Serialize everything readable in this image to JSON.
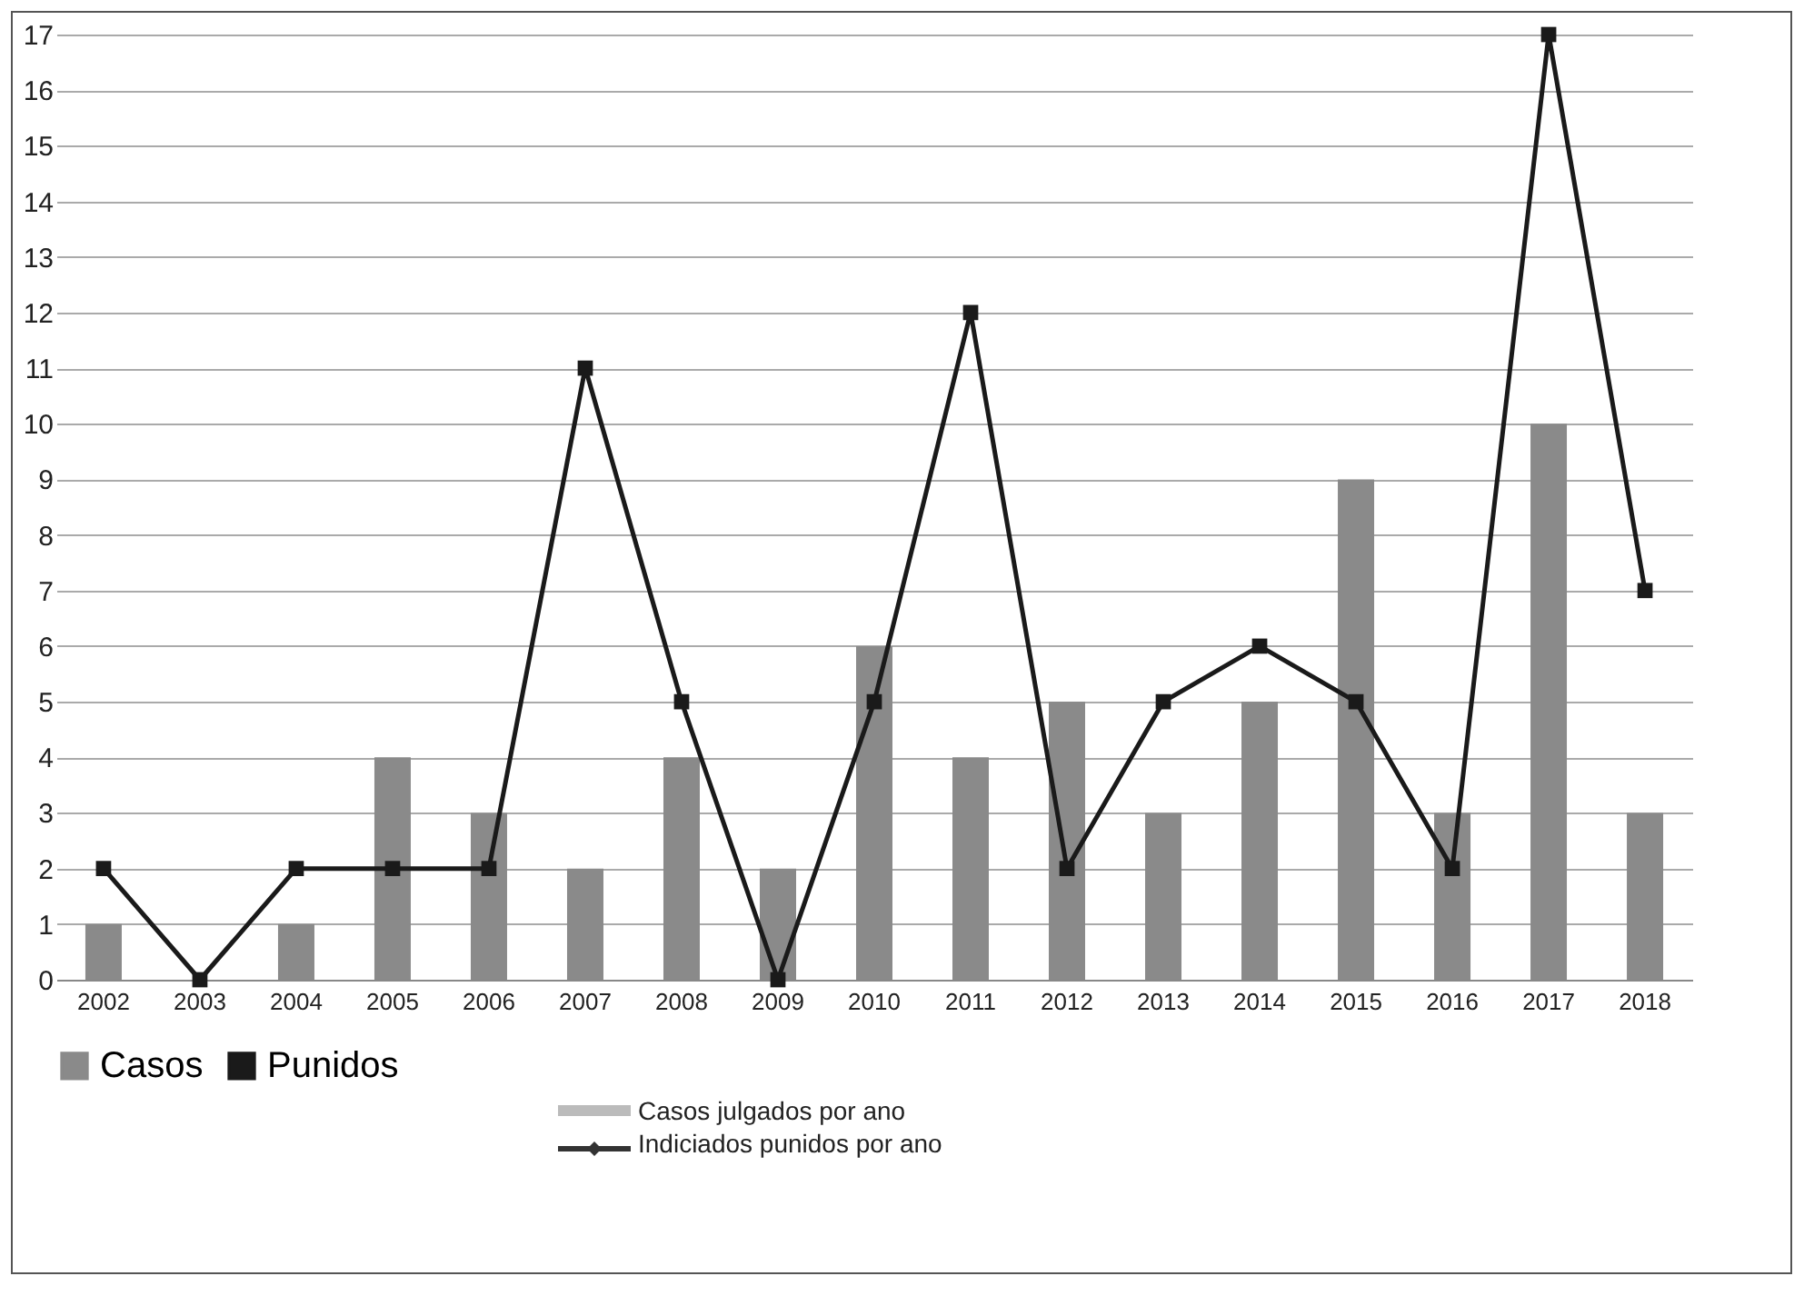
{
  "chart_data": {
    "type": "bar",
    "categories": [
      "2002",
      "2003",
      "2004",
      "2005",
      "2006",
      "2007",
      "2008",
      "2009",
      "2010",
      "2011",
      "2012",
      "2013",
      "2014",
      "2015",
      "2016",
      "2017",
      "2018"
    ],
    "series": [
      {
        "name": "Casos",
        "type": "bar",
        "color": "#8a8a8a",
        "values": [
          1,
          0,
          1,
          4,
          3,
          2,
          4,
          2,
          6,
          4,
          5,
          3,
          5,
          9,
          3,
          10,
          3
        ]
      },
      {
        "name": "Punidos",
        "type": "line",
        "color": "#1a1a1a",
        "marker": "square",
        "values": [
          2,
          0,
          2,
          2,
          2,
          11,
          5,
          0,
          5,
          12,
          2,
          5,
          6,
          5,
          2,
          17,
          7
        ]
      }
    ],
    "ylim": [
      0,
      17
    ],
    "yticks": [
      0,
      1,
      2,
      3,
      4,
      5,
      6,
      7,
      8,
      9,
      10,
      11,
      12,
      13,
      14,
      15,
      16,
      17
    ],
    "grid": "y",
    "legend": "bottom",
    "annotations": [
      "Casos julgados por ano",
      "Indiciados punidos por ano"
    ]
  }
}
